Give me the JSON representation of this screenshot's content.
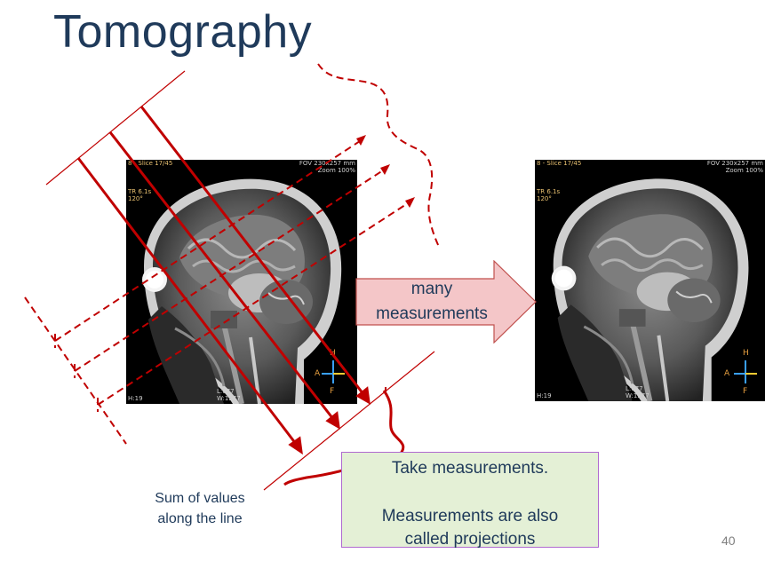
{
  "slide": {
    "title": "Tomography",
    "page_number": "40"
  },
  "arrow": {
    "line1": "many",
    "line2": "measurements",
    "fill": "#f4c6c8",
    "border": "#c0504d"
  },
  "note": {
    "line1": "Take measurements.",
    "line2": "Measurements are also",
    "line3": "called projections"
  },
  "caption": {
    "line1": "Sum of values",
    "line2": "along the line"
  },
  "colors": {
    "projection_lines": "#c00000",
    "title": "#1f3a5a"
  },
  "mri_left": {
    "top_left": "8 - Slice 17/45",
    "tr": "TR 6.1s",
    "angle": "120°",
    "top_right_1": "FOV 230x257 mm",
    "top_right_2": "Zoom 100%",
    "bottom_left": "H:19",
    "bottom_mid_1": "L:677",
    "bottom_mid_2": "W:1277",
    "orient_h": "H",
    "orient_a": "A",
    "orient_f": "F"
  },
  "mri_right": {
    "top_left": "8 - Slice 17/45",
    "tr": "TR 6.1s",
    "angle": "120°",
    "top_right_1": "FOV 230x257 mm",
    "top_right_2": "Zoom 100%",
    "bottom_left": "H:19",
    "bottom_mid_1": "L:677",
    "bottom_mid_2": "W:1277",
    "orient_h": "H",
    "orient_a": "A",
    "orient_f": "F"
  }
}
